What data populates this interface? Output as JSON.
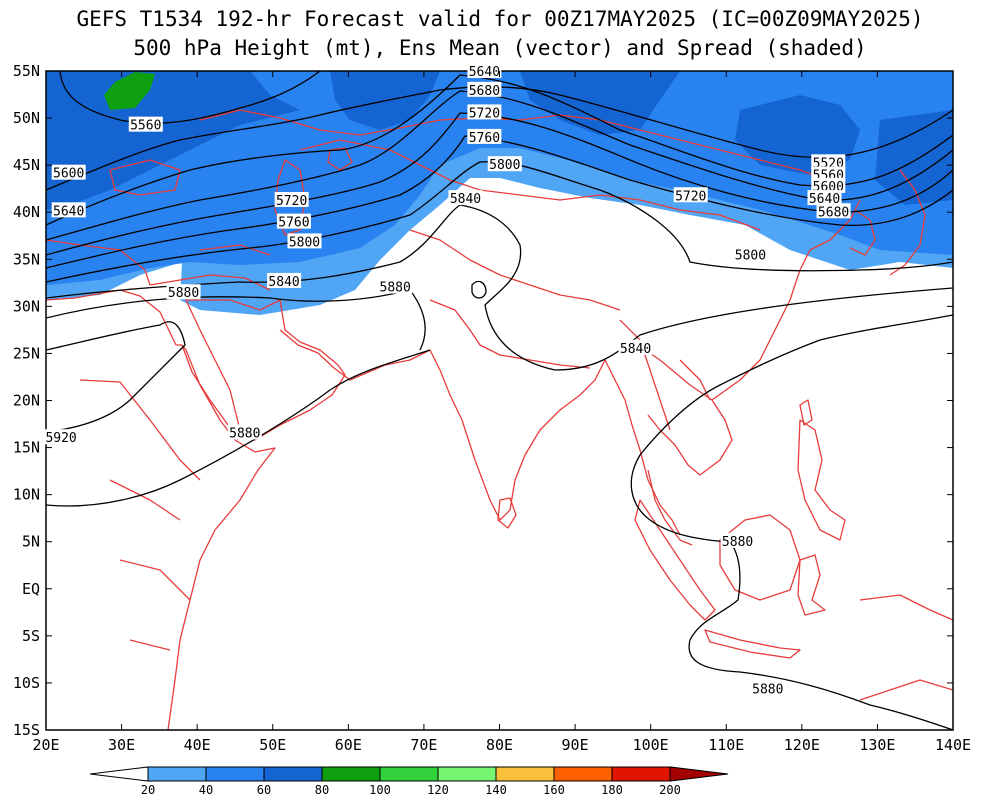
{
  "header": {
    "title_line1": "GEFS T1534 192-hr Forecast valid for 00Z17MAY2025 (IC=00Z09MAY2025)",
    "title_line2": "500 hPa Height (mt), Ens Mean (vector) and Spread (shaded)"
  },
  "map": {
    "lon_range": [
      20,
      140
    ],
    "lat_range": [
      -15,
      55
    ],
    "lon_ticks": [
      "20E",
      "30E",
      "40E",
      "50E",
      "60E",
      "70E",
      "80E",
      "90E",
      "100E",
      "110E",
      "120E",
      "130E",
      "140E"
    ],
    "lat_ticks": [
      "55N",
      "50N",
      "45N",
      "40N",
      "35N",
      "30N",
      "25N",
      "20N",
      "15N",
      "10N",
      "5N",
      "EQ",
      "5S",
      "10S",
      "15S"
    ],
    "coastline_color": "#e83c3c",
    "contour_color": "#000000",
    "contour_labels": [
      {
        "text": "5640",
        "lon": 78,
        "lat": 55
      },
      {
        "text": "5680",
        "lon": 78,
        "lat": 53
      },
      {
        "text": "5720",
        "lon": 78,
        "lat": 50.6
      },
      {
        "text": "5760",
        "lon": 78,
        "lat": 48
      },
      {
        "text": "5800",
        "lon": 80.7,
        "lat": 45.1
      },
      {
        "text": "5560",
        "lon": 33.2,
        "lat": 49.3
      },
      {
        "text": "5600",
        "lon": 23,
        "lat": 44.2
      },
      {
        "text": "5640",
        "lon": 23,
        "lat": 40.2
      },
      {
        "text": "5720",
        "lon": 52.5,
        "lat": 41.3
      },
      {
        "text": "5760",
        "lon": 52.8,
        "lat": 39
      },
      {
        "text": "5800",
        "lon": 54.2,
        "lat": 36.9
      },
      {
        "text": "5840",
        "lon": 51.5,
        "lat": 32.7
      },
      {
        "text": "5880",
        "lon": 38.2,
        "lat": 31.5
      },
      {
        "text": "5880",
        "lon": 66.2,
        "lat": 32.1
      },
      {
        "text": "5840",
        "lon": 75.5,
        "lat": 41.5
      },
      {
        "text": "5720",
        "lon": 105.3,
        "lat": 41.8
      },
      {
        "text": "5800",
        "lon": 113.2,
        "lat": 35.5
      },
      {
        "text": "5840",
        "lon": 98,
        "lat": 25.6
      },
      {
        "text": "5880",
        "lon": 46.3,
        "lat": 16.6
      },
      {
        "text": "5920",
        "lon": 22,
        "lat": 16.1
      },
      {
        "text": "5880",
        "lon": 111.5,
        "lat": 5.1
      },
      {
        "text": "5880",
        "lon": 115.5,
        "lat": -10.6
      },
      {
        "text": "5520",
        "lon": 123.5,
        "lat": 45.3
      },
      {
        "text": "5560",
        "lon": 123.5,
        "lat": 44
      },
      {
        "text": "5600",
        "lon": 123.5,
        "lat": 42.8
      },
      {
        "text": "5640",
        "lon": 123,
        "lat": 41.5
      },
      {
        "text": "5680",
        "lon": 124.2,
        "lat": 40.1
      }
    ]
  },
  "colorbar": {
    "levels": [
      "20",
      "40",
      "60",
      "80",
      "100",
      "120",
      "140",
      "160",
      "180",
      "200"
    ],
    "colors": [
      "#ffffff",
      "#50a5f5",
      "#2882f0",
      "#1464d2",
      "#0fa00f",
      "#32d23c",
      "#78f573",
      "#fac03c",
      "#ff6000",
      "#e11400",
      "#a50000"
    ]
  }
}
